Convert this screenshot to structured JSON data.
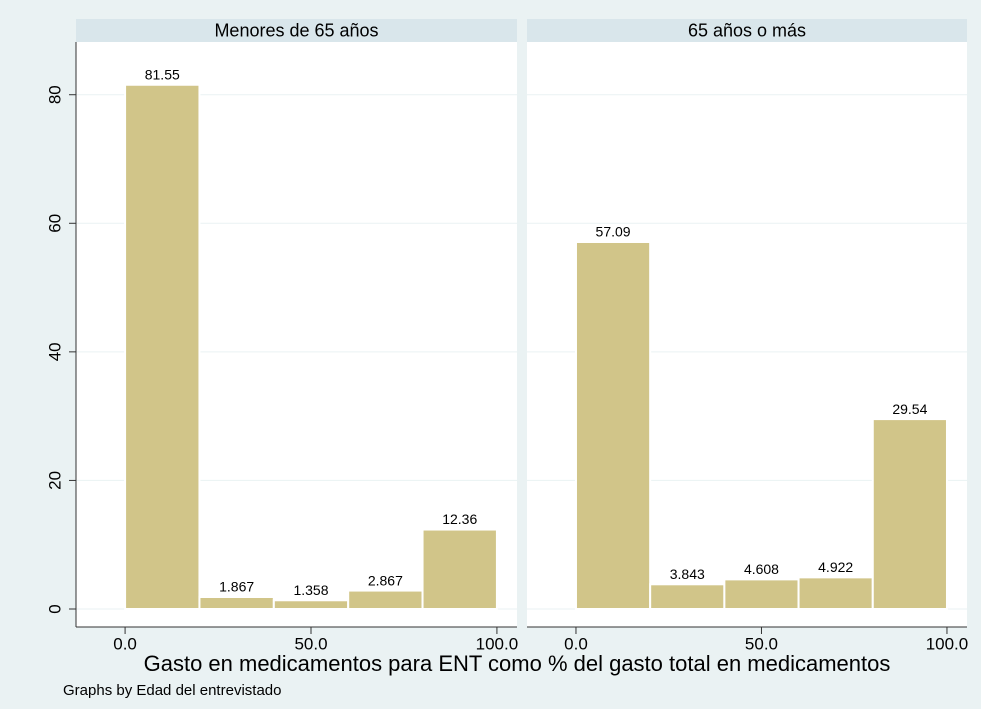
{
  "chart_data": [
    {
      "type": "histogram",
      "title": "Menores de 65 años",
      "bins": [
        0,
        20,
        40,
        60,
        80,
        100
      ],
      "values": [
        81.55,
        1.867,
        1.358,
        2.867,
        12.36
      ],
      "color": "#d1c589",
      "xlim": [
        -13.2,
        105.4
      ],
      "xticks": [
        {
          "value": 0,
          "label": "0.0"
        },
        {
          "value": 50,
          "label": "50.0"
        },
        {
          "value": 100,
          "label": "100.0"
        }
      ],
      "ylim": [
        -2.8,
        88.2
      ],
      "yticks": [
        0,
        20,
        40,
        60,
        80
      ],
      "grid": true
    },
    {
      "type": "histogram",
      "title": "65 años o más",
      "bins": [
        0,
        20,
        40,
        60,
        80,
        100
      ],
      "values": [
        57.09,
        3.843,
        4.608,
        4.922,
        29.54
      ],
      "color": "#d1c589",
      "xlim": [
        -13.2,
        105.4
      ],
      "xticks": [
        {
          "value": 0,
          "label": "0.0"
        },
        {
          "value": 50,
          "label": "50.0"
        },
        {
          "value": 100,
          "label": "100.0"
        }
      ],
      "ylim": [
        -2.8,
        88.2
      ],
      "yticks": [
        0,
        20,
        40,
        60,
        80
      ],
      "grid": true
    }
  ],
  "xlabel": "Gasto en medicamentos para ENT como % del gasto total en medicamentos",
  "note": "Graphs by Edad del entrevistado"
}
